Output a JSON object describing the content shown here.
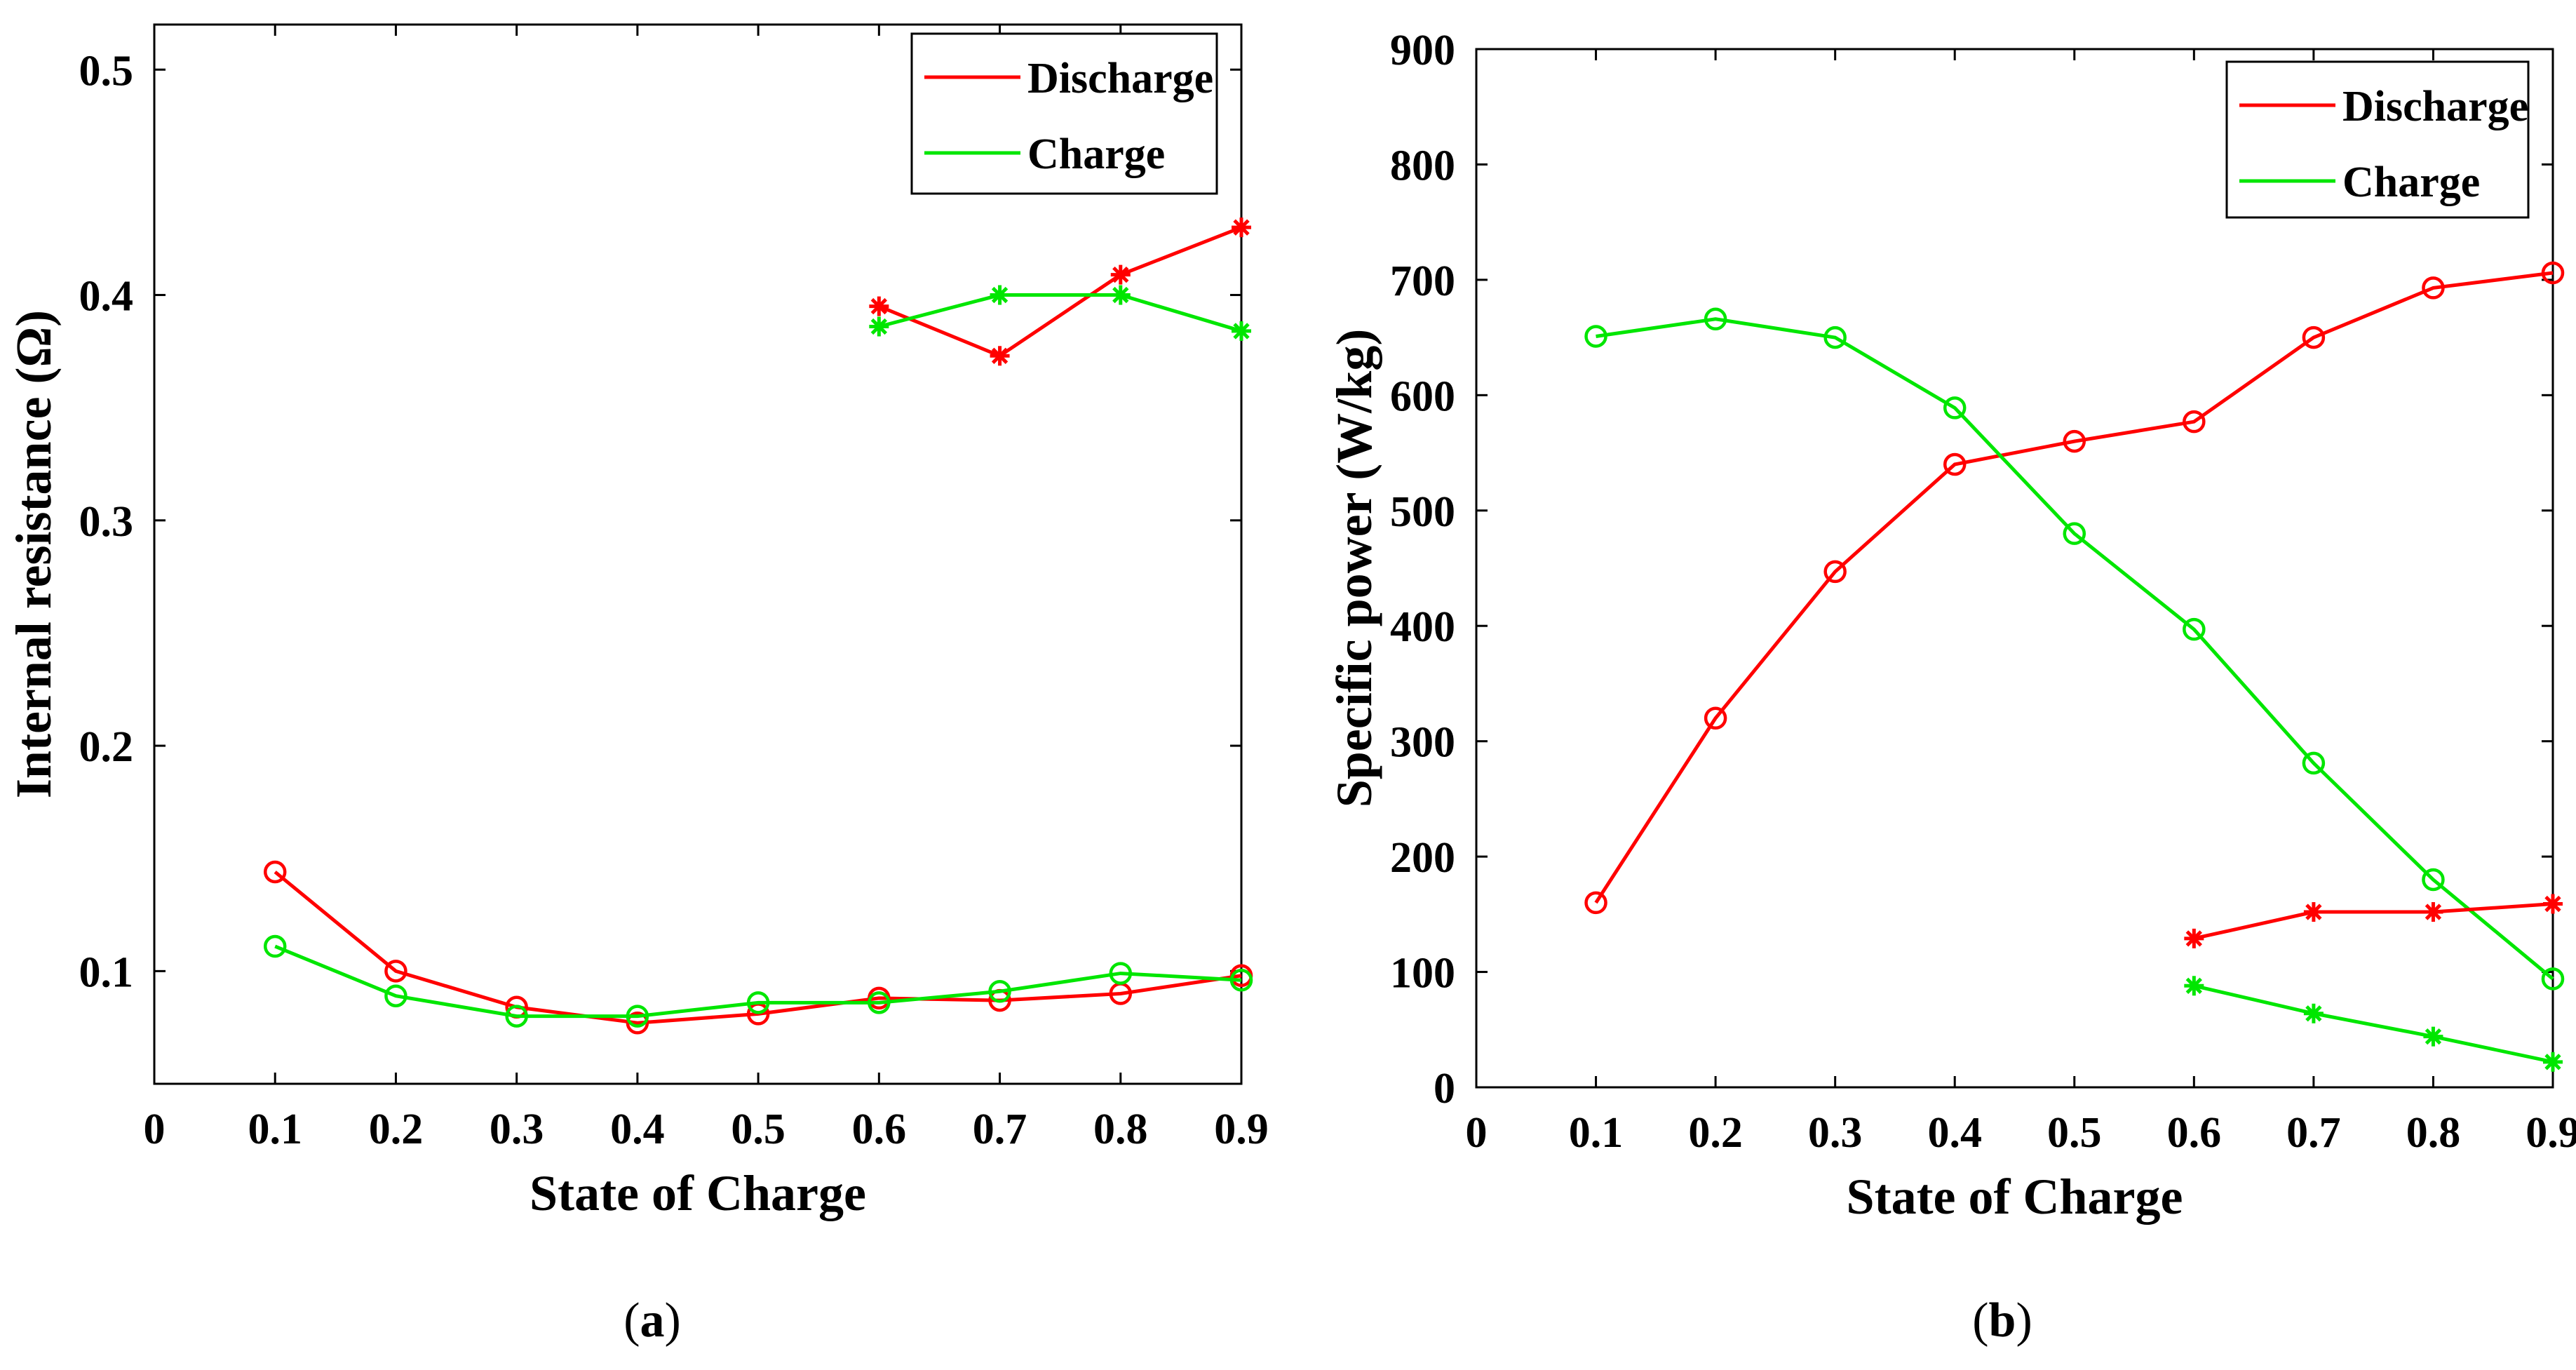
{
  "chart_data": [
    {
      "type": "line",
      "caption": "a",
      "xlabel": "State of Charge",
      "ylabel": "Internal resistance (Ω)",
      "xlim": [
        0,
        0.9
      ],
      "ylim": [
        0.05,
        0.52
      ],
      "xticks": [
        "0",
        "0.1",
        "0.2",
        "0.3",
        "0.4",
        "0.5",
        "0.6",
        "0.7",
        "0.8",
        "0.9"
      ],
      "xtick_values": [
        0,
        0.1,
        0.2,
        0.3,
        0.4,
        0.5,
        0.6,
        0.7,
        0.8,
        0.9
      ],
      "yticks": [
        "0.1",
        "0.2",
        "0.3",
        "0.4",
        "0.5"
      ],
      "ytick_values": [
        0.1,
        0.2,
        0.3,
        0.4,
        0.5
      ],
      "grid": false,
      "legend_position": "top-right",
      "legend": [
        "Discharge",
        "Charge"
      ],
      "series": [
        {
          "legend": 0,
          "color": "#ff0000",
          "marker": "circle",
          "x": [
            0.1,
            0.2,
            0.3,
            0.4,
            0.5,
            0.6,
            0.7,
            0.8,
            0.9
          ],
          "y": [
            0.144,
            0.1,
            0.084,
            0.077,
            0.081,
            0.088,
            0.087,
            0.09,
            0.098
          ]
        },
        {
          "legend": 1,
          "color": "#00e600",
          "marker": "circle",
          "x": [
            0.1,
            0.2,
            0.3,
            0.4,
            0.5,
            0.6,
            0.7,
            0.8,
            0.9
          ],
          "y": [
            0.111,
            0.089,
            0.08,
            0.08,
            0.086,
            0.086,
            0.091,
            0.099,
            0.096
          ]
        },
        {
          "legend": 0,
          "color": "#ff0000",
          "marker": "star",
          "x": [
            0.6,
            0.7,
            0.8,
            0.9
          ],
          "y": [
            0.395,
            0.373,
            0.409,
            0.43
          ]
        },
        {
          "legend": 1,
          "color": "#00e600",
          "marker": "star",
          "x": [
            0.6,
            0.7,
            0.8,
            0.9
          ],
          "y": [
            0.386,
            0.4,
            0.4,
            0.384
          ]
        }
      ]
    },
    {
      "type": "line",
      "caption": "b",
      "xlabel": "State of Charge",
      "ylabel": "Specific power (W/kg)",
      "xlim": [
        0,
        0.9
      ],
      "ylim": [
        0,
        900
      ],
      "xticks": [
        "0",
        "0.1",
        "0.2",
        "0.3",
        "0.4",
        "0.5",
        "0.6",
        "0.7",
        "0.8",
        "0.9"
      ],
      "xtick_values": [
        0,
        0.1,
        0.2,
        0.3,
        0.4,
        0.5,
        0.6,
        0.7,
        0.8,
        0.9
      ],
      "yticks": [
        "0",
        "100",
        "200",
        "300",
        "400",
        "500",
        "600",
        "700",
        "800",
        "900"
      ],
      "ytick_values": [
        0,
        100,
        200,
        300,
        400,
        500,
        600,
        700,
        800,
        900
      ],
      "grid": false,
      "legend_position": "top-right",
      "legend": [
        "Discharge",
        "Charge"
      ],
      "series": [
        {
          "legend": 0,
          "color": "#ff0000",
          "marker": "circle",
          "x": [
            0.1,
            0.2,
            0.3,
            0.4,
            0.5,
            0.6,
            0.7,
            0.8,
            0.9
          ],
          "y": [
            160,
            320,
            447,
            540,
            560,
            577,
            650,
            693,
            706
          ]
        },
        {
          "legend": 1,
          "color": "#00e600",
          "marker": "circle",
          "x": [
            0.1,
            0.2,
            0.3,
            0.4,
            0.5,
            0.6,
            0.7,
            0.8,
            0.9
          ],
          "y": [
            651,
            666,
            650,
            589,
            480,
            397,
            281,
            180,
            94
          ]
        },
        {
          "legend": 0,
          "color": "#ff0000",
          "marker": "star",
          "x": [
            0.6,
            0.7,
            0.8,
            0.9
          ],
          "y": [
            129,
            152,
            152,
            159
          ]
        },
        {
          "legend": 1,
          "color": "#00e600",
          "marker": "star",
          "x": [
            0.6,
            0.7,
            0.8,
            0.9
          ],
          "y": [
            88,
            64,
            44,
            22
          ]
        }
      ]
    }
  ]
}
